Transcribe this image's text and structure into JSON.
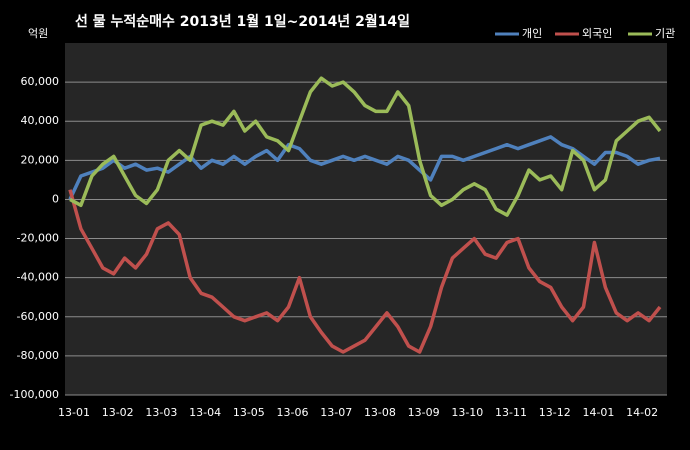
{
  "chart_data": {
    "type": "line",
    "title": "선 물 누적순매수 2013년 1월 1일~2014년 2월14일",
    "y_unit": "억원",
    "categories": [
      "13-01",
      null,
      null,
      null,
      "13-02",
      null,
      null,
      null,
      "13-03",
      null,
      null,
      null,
      "13-04",
      null,
      null,
      null,
      "13-05",
      null,
      null,
      null,
      "13-06",
      null,
      null,
      null,
      "13-07",
      null,
      null,
      null,
      "13-08",
      null,
      null,
      null,
      "13-09",
      null,
      null,
      null,
      "13-10",
      null,
      null,
      null,
      "13-11",
      null,
      null,
      null,
      "13-12",
      null,
      null,
      null,
      "14-01",
      null,
      null,
      null,
      "14-02",
      null,
      null
    ],
    "series": [
      {
        "name": "개인",
        "color": "#4f81bd",
        "values": [
          0,
          12000,
          14000,
          16000,
          20000,
          16000,
          18000,
          15000,
          16000,
          14000,
          18000,
          22000,
          16000,
          20000,
          18000,
          22000,
          18000,
          22000,
          25000,
          20000,
          28000,
          26000,
          20000,
          18000,
          20000,
          22000,
          20000,
          22000,
          20000,
          18000,
          22000,
          20000,
          15000,
          10000,
          22000,
          22000,
          20000,
          22000,
          24000,
          26000,
          28000,
          26000,
          28000,
          30000,
          32000,
          28000,
          26000,
          22000,
          18000,
          24000,
          24000,
          22000,
          18000,
          20000,
          21000
        ]
      },
      {
        "name": "외국인",
        "color": "#c0504d",
        "values": [
          5000,
          -15000,
          -25000,
          -35000,
          -38000,
          -30000,
          -35000,
          -28000,
          -15000,
          -12000,
          -18000,
          -40000,
          -48000,
          -50000,
          -55000,
          -60000,
          -62000,
          -60000,
          -58000,
          -62000,
          -55000,
          -40000,
          -60000,
          -68000,
          -75000,
          -78000,
          -75000,
          -72000,
          -65000,
          -58000,
          -65000,
          -75000,
          -78000,
          -65000,
          -45000,
          -30000,
          -25000,
          -20000,
          -28000,
          -30000,
          -22000,
          -20000,
          -35000,
          -42000,
          -45000,
          -55000,
          -62000,
          -55000,
          -22000,
          -45000,
          -58000,
          -62000,
          -58000,
          -62000,
          -55000
        ]
      },
      {
        "name": "기관",
        "color": "#9bbb59",
        "values": [
          0,
          -3000,
          12000,
          18000,
          22000,
          12000,
          2000,
          -2000,
          5000,
          20000,
          25000,
          20000,
          38000,
          40000,
          38000,
          45000,
          35000,
          40000,
          32000,
          30000,
          25000,
          40000,
          55000,
          62000,
          58000,
          60000,
          55000,
          48000,
          45000,
          45000,
          55000,
          48000,
          20000,
          2000,
          -3000,
          0,
          5000,
          8000,
          5000,
          -5000,
          -8000,
          2000,
          15000,
          10000,
          12000,
          5000,
          25000,
          20000,
          5000,
          10000,
          30000,
          35000,
          40000,
          42000,
          35000
        ]
      }
    ],
    "ylim": [
      -100000,
      80000
    ],
    "yticks": [
      {
        "value": -100000,
        "label": "-100,000"
      },
      {
        "value": -80000,
        "label": "-80,000"
      },
      {
        "value": -60000,
        "label": "-60,000"
      },
      {
        "value": -40000,
        "label": "-40,000"
      },
      {
        "value": -20000,
        "label": "-20,000"
      },
      0,
      {
        "value": 20000,
        "label": "20,000"
      },
      {
        "value": 40000,
        "label": "40,000"
      },
      {
        "value": 60000,
        "label": "60,000"
      }
    ],
    "grid": true,
    "legend": "top-right"
  }
}
